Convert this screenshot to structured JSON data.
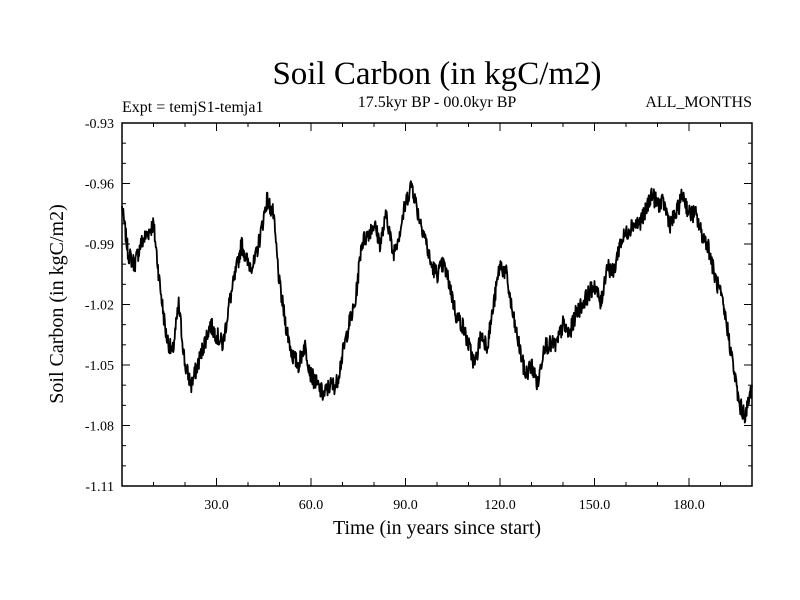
{
  "chart_data": {
    "type": "line",
    "title": "Soil Carbon (in kgC/m2)",
    "subtitle_left": "Expt = temjS1-temja1",
    "subtitle_center": "17.5kyr BP - 00.0kyr BP",
    "subtitle_right": "ALL_MONTHS",
    "xlabel": "Time (in years since start)",
    "ylabel": "Soil Carbon (in kgC/m2)",
    "xlim": [
      0,
      200
    ],
    "ylim": [
      -1.11,
      -0.93
    ],
    "xticks": [
      30,
      60,
      90,
      120,
      150,
      180
    ],
    "xtick_labels": [
      "30.0",
      "60.0",
      "90.0",
      "120.0",
      "150.0",
      "180.0"
    ],
    "yticks": [
      -0.93,
      -0.96,
      -0.99,
      -1.02,
      -1.05,
      -1.08,
      -1.11
    ],
    "ytick_labels": [
      "-0.93",
      "-0.96",
      "-0.99",
      "-1.02",
      "-1.05",
      "-1.08",
      "-1.11"
    ],
    "grid": false,
    "line_color": "#000000",
    "series": [
      {
        "name": "Soil Carbon",
        "x": [
          0,
          2,
          4,
          6,
          8,
          10,
          12,
          14,
          16,
          18,
          20,
          22,
          24,
          26,
          28,
          30,
          32,
          34,
          36,
          38,
          40,
          42,
          44,
          46,
          48,
          50,
          52,
          54,
          56,
          58,
          60,
          62,
          64,
          66,
          68,
          70,
          72,
          74,
          76,
          78,
          80,
          82,
          84,
          86,
          88,
          90,
          92,
          94,
          96,
          98,
          100,
          102,
          104,
          106,
          108,
          110,
          112,
          114,
          116,
          118,
          120,
          122,
          124,
          126,
          128,
          130,
          132,
          134,
          136,
          138,
          140,
          142,
          144,
          146,
          148,
          150,
          152,
          154,
          156,
          158,
          160,
          162,
          164,
          166,
          168,
          170,
          172,
          174,
          176,
          178,
          180,
          182,
          184,
          186,
          188,
          190,
          192,
          194,
          196,
          198,
          200
        ],
        "values": [
          -0.972,
          -0.995,
          -1.0,
          -0.99,
          -0.985,
          -0.98,
          -1.01,
          -1.035,
          -1.045,
          -1.02,
          -1.05,
          -1.06,
          -1.05,
          -1.04,
          -1.03,
          -1.035,
          -1.04,
          -1.02,
          -1.005,
          -0.99,
          -1.0,
          -1.0,
          -0.985,
          -0.968,
          -0.975,
          -1.01,
          -1.03,
          -1.045,
          -1.05,
          -1.04,
          -1.055,
          -1.06,
          -1.065,
          -1.06,
          -1.06,
          -1.045,
          -1.03,
          -1.02,
          -0.99,
          -0.985,
          -0.98,
          -0.99,
          -0.975,
          -0.995,
          -0.985,
          -0.97,
          -0.96,
          -0.975,
          -0.985,
          -1.0,
          -1.005,
          -1.0,
          -1.01,
          -1.025,
          -1.03,
          -1.04,
          -1.05,
          -1.035,
          -1.04,
          -1.02,
          -1.0,
          -1.005,
          -1.025,
          -1.04,
          -1.055,
          -1.05,
          -1.06,
          -1.04,
          -1.04,
          -1.04,
          -1.03,
          -1.035,
          -1.025,
          -1.02,
          -1.015,
          -1.01,
          -1.02,
          -1.0,
          -1.005,
          -0.99,
          -0.985,
          -0.98,
          -0.98,
          -0.975,
          -0.965,
          -0.97,
          -0.97,
          -0.98,
          -0.975,
          -0.965,
          -0.975,
          -0.975,
          -0.985,
          -0.99,
          -1.005,
          -1.015,
          -1.03,
          -1.05,
          -1.07,
          -1.075,
          -1.06
        ]
      }
    ]
  }
}
